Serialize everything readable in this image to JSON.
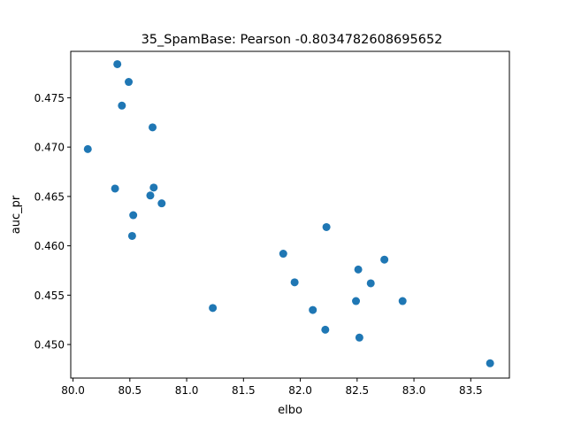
{
  "chart_data": {
    "type": "scatter",
    "title": "35_SpamBase: Pearson -0.8034782608695652",
    "xlabel": "elbo",
    "ylabel": "auc_pr",
    "xlim": [
      79.98,
      83.84
    ],
    "ylim": [
      0.4466,
      0.4797
    ],
    "xticks": [
      80.0,
      80.5,
      81.0,
      81.5,
      82.0,
      82.5,
      83.0,
      83.5
    ],
    "xtick_labels": [
      "80.0",
      "80.5",
      "81.0",
      "81.5",
      "82.0",
      "82.5",
      "83.0",
      "83.5"
    ],
    "yticks": [
      0.45,
      0.455,
      0.46,
      0.465,
      0.47,
      0.475
    ],
    "ytick_labels": [
      "0.450",
      "0.455",
      "0.460",
      "0.465",
      "0.470",
      "0.475"
    ],
    "grid": false,
    "legend": "none",
    "marker_color": "#1f77b4",
    "points": [
      {
        "x": 80.13,
        "y": 0.4698
      },
      {
        "x": 80.37,
        "y": 0.4658
      },
      {
        "x": 80.39,
        "y": 0.4784
      },
      {
        "x": 80.43,
        "y": 0.4742
      },
      {
        "x": 80.49,
        "y": 0.4766
      },
      {
        "x": 80.52,
        "y": 0.461
      },
      {
        "x": 80.53,
        "y": 0.4631
      },
      {
        "x": 80.68,
        "y": 0.4651
      },
      {
        "x": 80.7,
        "y": 0.472
      },
      {
        "x": 80.71,
        "y": 0.4659
      },
      {
        "x": 80.78,
        "y": 0.4643
      },
      {
        "x": 81.23,
        "y": 0.4537
      },
      {
        "x": 81.85,
        "y": 0.4592
      },
      {
        "x": 81.95,
        "y": 0.4563
      },
      {
        "x": 82.11,
        "y": 0.4535
      },
      {
        "x": 82.22,
        "y": 0.4515
      },
      {
        "x": 82.23,
        "y": 0.4619
      },
      {
        "x": 82.49,
        "y": 0.4544
      },
      {
        "x": 82.51,
        "y": 0.4576
      },
      {
        "x": 82.52,
        "y": 0.4507
      },
      {
        "x": 82.62,
        "y": 0.4562
      },
      {
        "x": 82.74,
        "y": 0.4586
      },
      {
        "x": 82.9,
        "y": 0.4544
      },
      {
        "x": 83.67,
        "y": 0.4481
      }
    ]
  }
}
